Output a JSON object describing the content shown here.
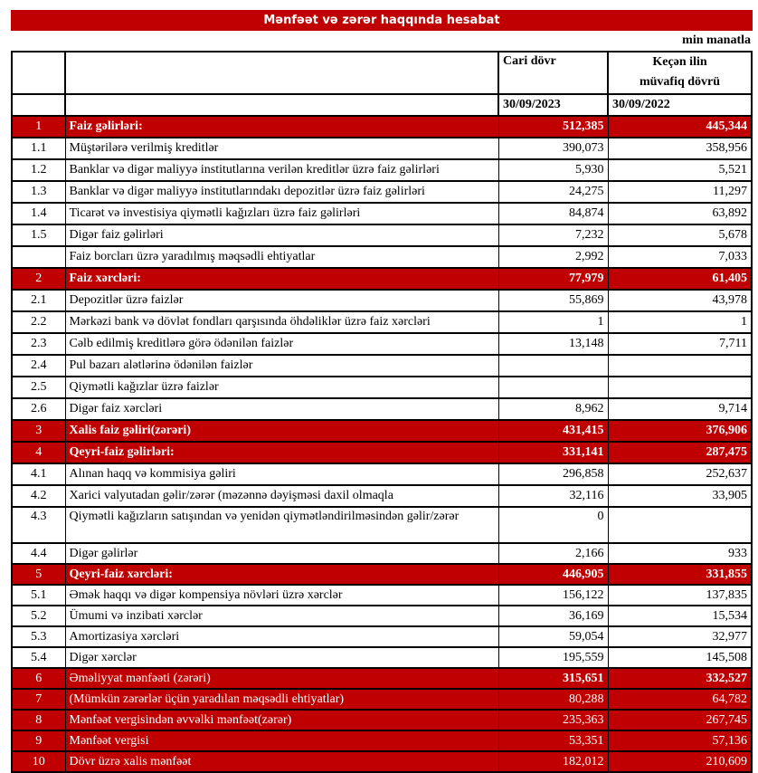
{
  "title": "Mənfəət və zərər haqqında hesabat",
  "unit": "min manatla",
  "header": {
    "current": "Cari dövr",
    "previous_line1": "Keçən ilin",
    "previous_line2": "müvafiq dövrü",
    "current_date": "30/09/2023",
    "previous_date": "30/09/2022"
  },
  "rows": [
    {
      "no": "1",
      "label": "Faiz gəlirləri:",
      "cur": "512,385",
      "prev": "445,344",
      "type": "red-bold"
    },
    {
      "no": "1.1",
      "label": "Müştərilərə verilmiş kreditlər",
      "cur": "390,073",
      "prev": "358,956"
    },
    {
      "no": "1.2",
      "label": "Banklar və digər maliyyə institutlarına verilən kreditlər üzrə faiz gəlirləri",
      "cur": "5,930",
      "prev": "5,521"
    },
    {
      "no": "1.3",
      "label": "Banklar və digər maliyyə institutlarındakı depozitlər üzrə faiz gəlirləri",
      "cur": "24,275",
      "prev": "11,297"
    },
    {
      "no": "1.4",
      "label": "Ticarət və investisiya qiymətli kağızları üzrə faiz gəlirləri",
      "cur": "84,874",
      "prev": "63,892"
    },
    {
      "no": "1.5",
      "label": "Digər faiz gəlirləri",
      "cur": "7,232",
      "prev": "5,678"
    },
    {
      "no": "",
      "label": "Faiz borcları üzrə yaradılmış məqsədli ehtiyatlar",
      "cur": "2,992",
      "prev": "7,033"
    },
    {
      "no": "2",
      "label": "Faiz xərcləri:",
      "cur": "77,979",
      "prev": "61,405",
      "type": "red-bold"
    },
    {
      "no": "2.1",
      "label": "Depozitlər üzrə faizlər",
      "cur": "55,869",
      "prev": "43,978"
    },
    {
      "no": "2.2",
      "label": "Mərkəzi bank və dövlət fondları qarşısında öhdəliklər üzrə faiz xərcləri",
      "cur": "1",
      "prev": "1"
    },
    {
      "no": "2.3",
      "label": "Cəlb edilmiş kreditlərə görə ödənilən faizlər",
      "cur": "13,148",
      "prev": "7,711"
    },
    {
      "no": "2.4",
      "label": "Pul bazarı alətlərinə ödənilən faizlər",
      "cur": "",
      "prev": ""
    },
    {
      "no": "2.5",
      "label": "Qiymətli kağızlar üzrə faizlər",
      "cur": "",
      "prev": ""
    },
    {
      "no": "2.6",
      "label": "Digər faiz xərcləri",
      "cur": "8,962",
      "prev": "9,714"
    },
    {
      "no": "3",
      "label": "Xalis faiz gəliri(zərəri)",
      "cur": "431,415",
      "prev": "376,906",
      "type": "red-bold"
    },
    {
      "no": "4",
      "label": "Qeyri-faiz gəlirləri:",
      "cur": "331,141",
      "prev": "287,475",
      "type": "red-bold"
    },
    {
      "no": "4.1",
      "label": "Alınan haqq və kommisiya gəliri",
      "cur": "296,858",
      "prev": "252,637"
    },
    {
      "no": "4.2",
      "label": "Xarici valyutadan gəlir/zərər (məzənnə dəyişməsi daxil olmaqla",
      "cur": "32,116",
      "prev": "33,905"
    },
    {
      "no": "4.3",
      "label": "Qiymətli kağızların satışından və yenidən qiymətləndirilməsindən gəlir/zərər",
      "cur": "0",
      "prev": "",
      "type": "tall"
    },
    {
      "no": "4.4",
      "label": "Digər gəlirlər",
      "cur": "2,166",
      "prev": "933"
    },
    {
      "no": "5",
      "label": "Qeyri-faiz xərcləri:",
      "cur": "446,905",
      "prev": "331,855",
      "type": "red-bold"
    },
    {
      "no": "5.1",
      "label": "Əmək haqqı və digər kompensiya növləri üzrə xərclər",
      "cur": "156,122",
      "prev": "137,835"
    },
    {
      "no": "5.2",
      "label": "Ümumi və inzibati xərclər",
      "cur": "36,169",
      "prev": "15,534"
    },
    {
      "no": "5.3",
      "label": "Amortizasiya xərcləri",
      "cur": "59,054",
      "prev": "32,977"
    },
    {
      "no": "5.4",
      "label": "Digər xərclər",
      "cur": "195,559",
      "prev": "145,508"
    },
    {
      "no": "6",
      "label": "Əməliyyat mənfəəti (zərəri)",
      "cur": "315,651",
      "prev": "332,527",
      "type": "red-boldval"
    },
    {
      "no": "7",
      "label": "(Mümkün zərərlər üçün yaradılan məqsədli ehtiyatlar)",
      "cur": "80,288",
      "prev": "64,782",
      "type": "red"
    },
    {
      "no": "8",
      "label": "Mənfəət vergisindən əvvəlki mənfəət(zərər)",
      "cur": "235,363",
      "prev": "267,745",
      "type": "red"
    },
    {
      "no": "9",
      "label": "Mənfəət vergisi",
      "cur": "53,351",
      "prev": "57,136",
      "type": "red"
    },
    {
      "no": "10",
      "label": "Dövr üzrə xalis mənfəət",
      "cur": "182,012",
      "prev": "210,609",
      "type": "red"
    }
  ]
}
